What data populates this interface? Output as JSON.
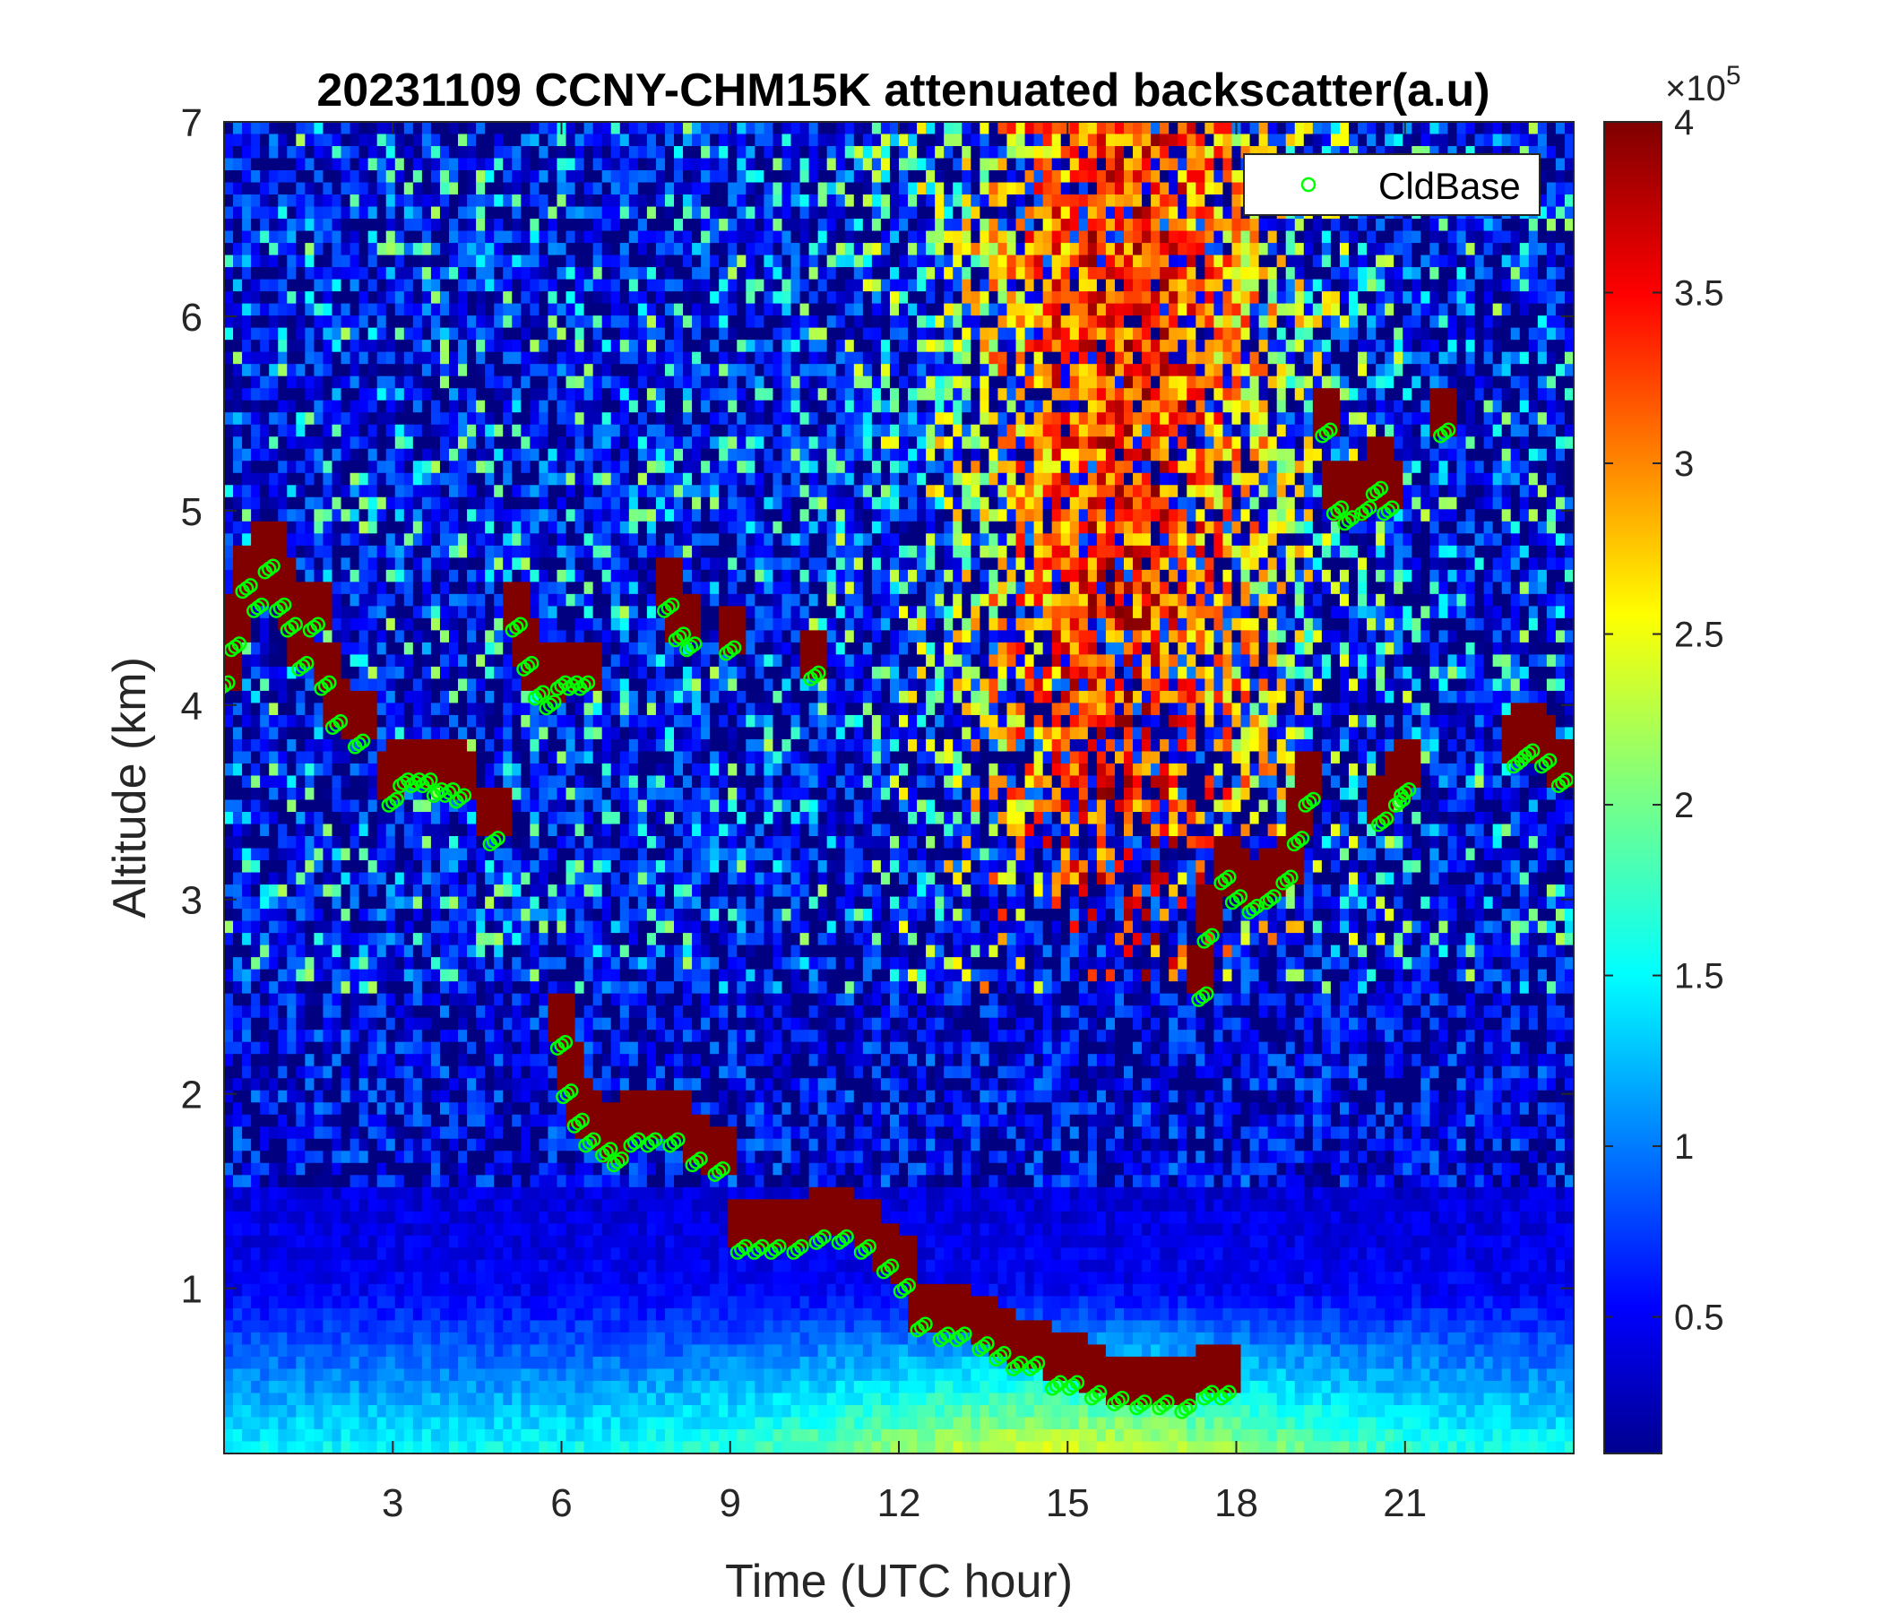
{
  "chart_data": {
    "type": "heatmap",
    "title": "20231109 CCNY-CHM15K attenuated backscatter(a.u)",
    "xlabel": "Time (UTC hour)",
    "ylabel": "Altitude (km)",
    "xlim": [
      0,
      24
    ],
    "ylim": [
      0.15,
      7
    ],
    "xticks": [
      3,
      6,
      9,
      12,
      15,
      18,
      21
    ],
    "yticks": [
      1,
      2,
      3,
      4,
      5,
      6,
      7
    ],
    "colorbar": {
      "colormap": "jet",
      "clim": [
        0.1,
        4
      ],
      "ticks": [
        0.5,
        1,
        1.5,
        2,
        2.5,
        3,
        3.5,
        4
      ],
      "tick_labels": [
        "0.5",
        "1",
        "1.5",
        "2",
        "2.5",
        "3",
        "3.5",
        "4"
      ],
      "multiplier_base": "×10",
      "multiplier_exp": "5"
    },
    "legend": {
      "position": "top-right",
      "entries": [
        {
          "name": "CldBase",
          "marker": "o",
          "color": "#00ff00"
        }
      ]
    },
    "cloud_base_km": {
      "x": [
        0.0,
        0.2,
        0.4,
        0.6,
        0.8,
        1.0,
        1.2,
        1.4,
        1.6,
        1.8,
        2.0,
        2.4,
        3.0,
        3.2,
        3.4,
        3.6,
        3.8,
        4.0,
        4.2,
        4.8,
        5.2,
        5.4,
        5.6,
        5.8,
        6.0,
        6.2,
        6.4,
        7.9,
        8.1,
        8.3,
        9.0,
        10.5,
        6.0,
        6.1,
        6.3,
        6.5,
        6.8,
        7.0,
        7.3,
        7.6,
        8.0,
        8.4,
        8.8,
        9.2,
        9.5,
        9.8,
        10.2,
        10.6,
        11.0,
        11.4,
        11.8,
        12.1,
        12.4,
        12.8,
        13.1,
        13.5,
        13.8,
        14.1,
        14.4,
        14.8,
        15.1,
        15.5,
        15.9,
        16.3,
        16.7,
        17.1,
        17.5,
        17.8,
        17.4,
        17.5,
        17.8,
        18.0,
        18.3,
        18.6,
        18.9,
        19.1,
        19.3,
        19.6,
        19.8,
        20.0,
        20.3,
        20.5,
        20.7,
        20.6,
        20.9,
        21.0,
        21.7,
        23.0,
        23.2,
        23.5,
        23.8
      ],
      "y": [
        4.1,
        4.3,
        4.6,
        4.5,
        4.7,
        4.5,
        4.4,
        4.2,
        4.4,
        4.1,
        3.9,
        3.8,
        3.5,
        3.6,
        3.6,
        3.6,
        3.55,
        3.55,
        3.52,
        3.3,
        4.4,
        4.2,
        4.05,
        4.0,
        4.1,
        4.1,
        4.1,
        4.5,
        4.35,
        4.3,
        4.28,
        4.15,
        2.25,
        2.0,
        1.85,
        1.75,
        1.7,
        1.65,
        1.75,
        1.75,
        1.75,
        1.65,
        1.6,
        1.2,
        1.2,
        1.2,
        1.2,
        1.25,
        1.25,
        1.2,
        1.1,
        1.0,
        0.8,
        0.75,
        0.75,
        0.7,
        0.65,
        0.6,
        0.6,
        0.5,
        0.5,
        0.45,
        0.42,
        0.4,
        0.4,
        0.38,
        0.45,
        0.45,
        2.5,
        2.8,
        3.1,
        3.0,
        2.95,
        3.0,
        3.1,
        3.3,
        3.5,
        5.4,
        5.0,
        4.95,
        5.0,
        5.1,
        5.0,
        3.4,
        3.5,
        3.55,
        5.4,
        3.7,
        3.75,
        3.7,
        3.6
      ]
    }
  }
}
